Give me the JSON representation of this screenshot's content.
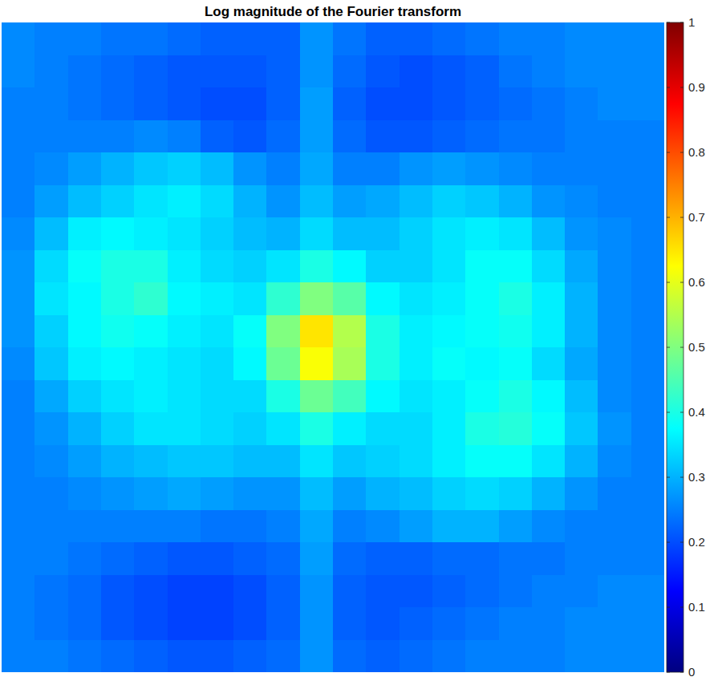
{
  "chart_data": {
    "type": "heatmap",
    "title": "Log magnitude of the Fourier transform",
    "tick_labels": false,
    "cells": [
      [
        0.26,
        0.25,
        0.25,
        0.24,
        0.24,
        0.23,
        0.22,
        0.22,
        0.22,
        0.27,
        0.24,
        0.22,
        0.22,
        0.23,
        0.24,
        0.25,
        0.25,
        0.26,
        0.26,
        0.26
      ],
      [
        0.26,
        0.25,
        0.24,
        0.23,
        0.22,
        0.21,
        0.21,
        0.21,
        0.22,
        0.27,
        0.23,
        0.21,
        0.2,
        0.21,
        0.22,
        0.24,
        0.25,
        0.26,
        0.26,
        0.26
      ],
      [
        0.25,
        0.25,
        0.24,
        0.23,
        0.22,
        0.21,
        0.2,
        0.2,
        0.22,
        0.28,
        0.22,
        0.2,
        0.2,
        0.21,
        0.22,
        0.23,
        0.24,
        0.25,
        0.26,
        0.26
      ],
      [
        0.25,
        0.25,
        0.25,
        0.25,
        0.26,
        0.25,
        0.22,
        0.21,
        0.23,
        0.28,
        0.23,
        0.21,
        0.21,
        0.22,
        0.23,
        0.24,
        0.24,
        0.25,
        0.25,
        0.25
      ],
      [
        0.25,
        0.26,
        0.28,
        0.3,
        0.32,
        0.33,
        0.31,
        0.27,
        0.25,
        0.29,
        0.25,
        0.25,
        0.27,
        0.28,
        0.27,
        0.26,
        0.25,
        0.25,
        0.25,
        0.25
      ],
      [
        0.25,
        0.28,
        0.31,
        0.33,
        0.35,
        0.36,
        0.34,
        0.3,
        0.27,
        0.31,
        0.28,
        0.29,
        0.31,
        0.33,
        0.32,
        0.3,
        0.27,
        0.26,
        0.25,
        0.25
      ],
      [
        0.26,
        0.31,
        0.36,
        0.37,
        0.36,
        0.35,
        0.33,
        0.31,
        0.3,
        0.34,
        0.31,
        0.31,
        0.33,
        0.35,
        0.36,
        0.35,
        0.31,
        0.27,
        0.26,
        0.25
      ],
      [
        0.27,
        0.34,
        0.38,
        0.4,
        0.4,
        0.36,
        0.34,
        0.33,
        0.35,
        0.4,
        0.37,
        0.33,
        0.33,
        0.35,
        0.38,
        0.38,
        0.34,
        0.29,
        0.26,
        0.25
      ],
      [
        0.27,
        0.35,
        0.37,
        0.4,
        0.42,
        0.37,
        0.36,
        0.35,
        0.42,
        0.5,
        0.46,
        0.37,
        0.35,
        0.36,
        0.38,
        0.4,
        0.36,
        0.3,
        0.26,
        0.25
      ],
      [
        0.27,
        0.33,
        0.37,
        0.39,
        0.38,
        0.36,
        0.35,
        0.38,
        0.5,
        0.65,
        0.55,
        0.4,
        0.36,
        0.37,
        0.38,
        0.39,
        0.36,
        0.3,
        0.26,
        0.25
      ],
      [
        0.26,
        0.32,
        0.36,
        0.37,
        0.36,
        0.35,
        0.34,
        0.37,
        0.48,
        0.62,
        0.54,
        0.4,
        0.36,
        0.38,
        0.37,
        0.38,
        0.34,
        0.29,
        0.26,
        0.25
      ],
      [
        0.25,
        0.29,
        0.33,
        0.35,
        0.36,
        0.35,
        0.34,
        0.34,
        0.4,
        0.48,
        0.44,
        0.37,
        0.35,
        0.36,
        0.38,
        0.4,
        0.37,
        0.31,
        0.26,
        0.25
      ],
      [
        0.25,
        0.27,
        0.3,
        0.33,
        0.35,
        0.35,
        0.34,
        0.33,
        0.35,
        0.4,
        0.36,
        0.34,
        0.34,
        0.36,
        0.4,
        0.41,
        0.38,
        0.32,
        0.27,
        0.25
      ],
      [
        0.25,
        0.26,
        0.28,
        0.3,
        0.31,
        0.32,
        0.32,
        0.31,
        0.31,
        0.35,
        0.32,
        0.33,
        0.34,
        0.36,
        0.38,
        0.38,
        0.35,
        0.3,
        0.26,
        0.25
      ],
      [
        0.25,
        0.25,
        0.26,
        0.27,
        0.28,
        0.29,
        0.28,
        0.27,
        0.27,
        0.31,
        0.28,
        0.3,
        0.31,
        0.33,
        0.34,
        0.33,
        0.3,
        0.27,
        0.25,
        0.25
      ],
      [
        0.25,
        0.25,
        0.25,
        0.25,
        0.25,
        0.25,
        0.24,
        0.24,
        0.25,
        0.29,
        0.25,
        0.26,
        0.28,
        0.3,
        0.3,
        0.28,
        0.26,
        0.25,
        0.25,
        0.25
      ],
      [
        0.25,
        0.25,
        0.24,
        0.23,
        0.22,
        0.21,
        0.21,
        0.22,
        0.23,
        0.28,
        0.23,
        0.22,
        0.22,
        0.23,
        0.23,
        0.24,
        0.24,
        0.25,
        0.25,
        0.25
      ],
      [
        0.25,
        0.24,
        0.23,
        0.21,
        0.2,
        0.19,
        0.19,
        0.2,
        0.22,
        0.27,
        0.22,
        0.21,
        0.21,
        0.22,
        0.23,
        0.24,
        0.25,
        0.25,
        0.26,
        0.26
      ],
      [
        0.25,
        0.24,
        0.23,
        0.21,
        0.2,
        0.19,
        0.19,
        0.2,
        0.22,
        0.27,
        0.22,
        0.21,
        0.22,
        0.23,
        0.24,
        0.25,
        0.25,
        0.26,
        0.26,
        0.26
      ],
      [
        0.25,
        0.25,
        0.24,
        0.23,
        0.22,
        0.21,
        0.21,
        0.22,
        0.23,
        0.27,
        0.23,
        0.22,
        0.23,
        0.24,
        0.25,
        0.25,
        0.25,
        0.26,
        0.26,
        0.26
      ]
    ],
    "clim": [
      0,
      1
    ],
    "cticks": [
      0,
      0.1,
      0.2,
      0.3,
      0.4,
      0.5,
      0.6,
      0.7,
      0.8,
      0.9,
      1
    ]
  }
}
